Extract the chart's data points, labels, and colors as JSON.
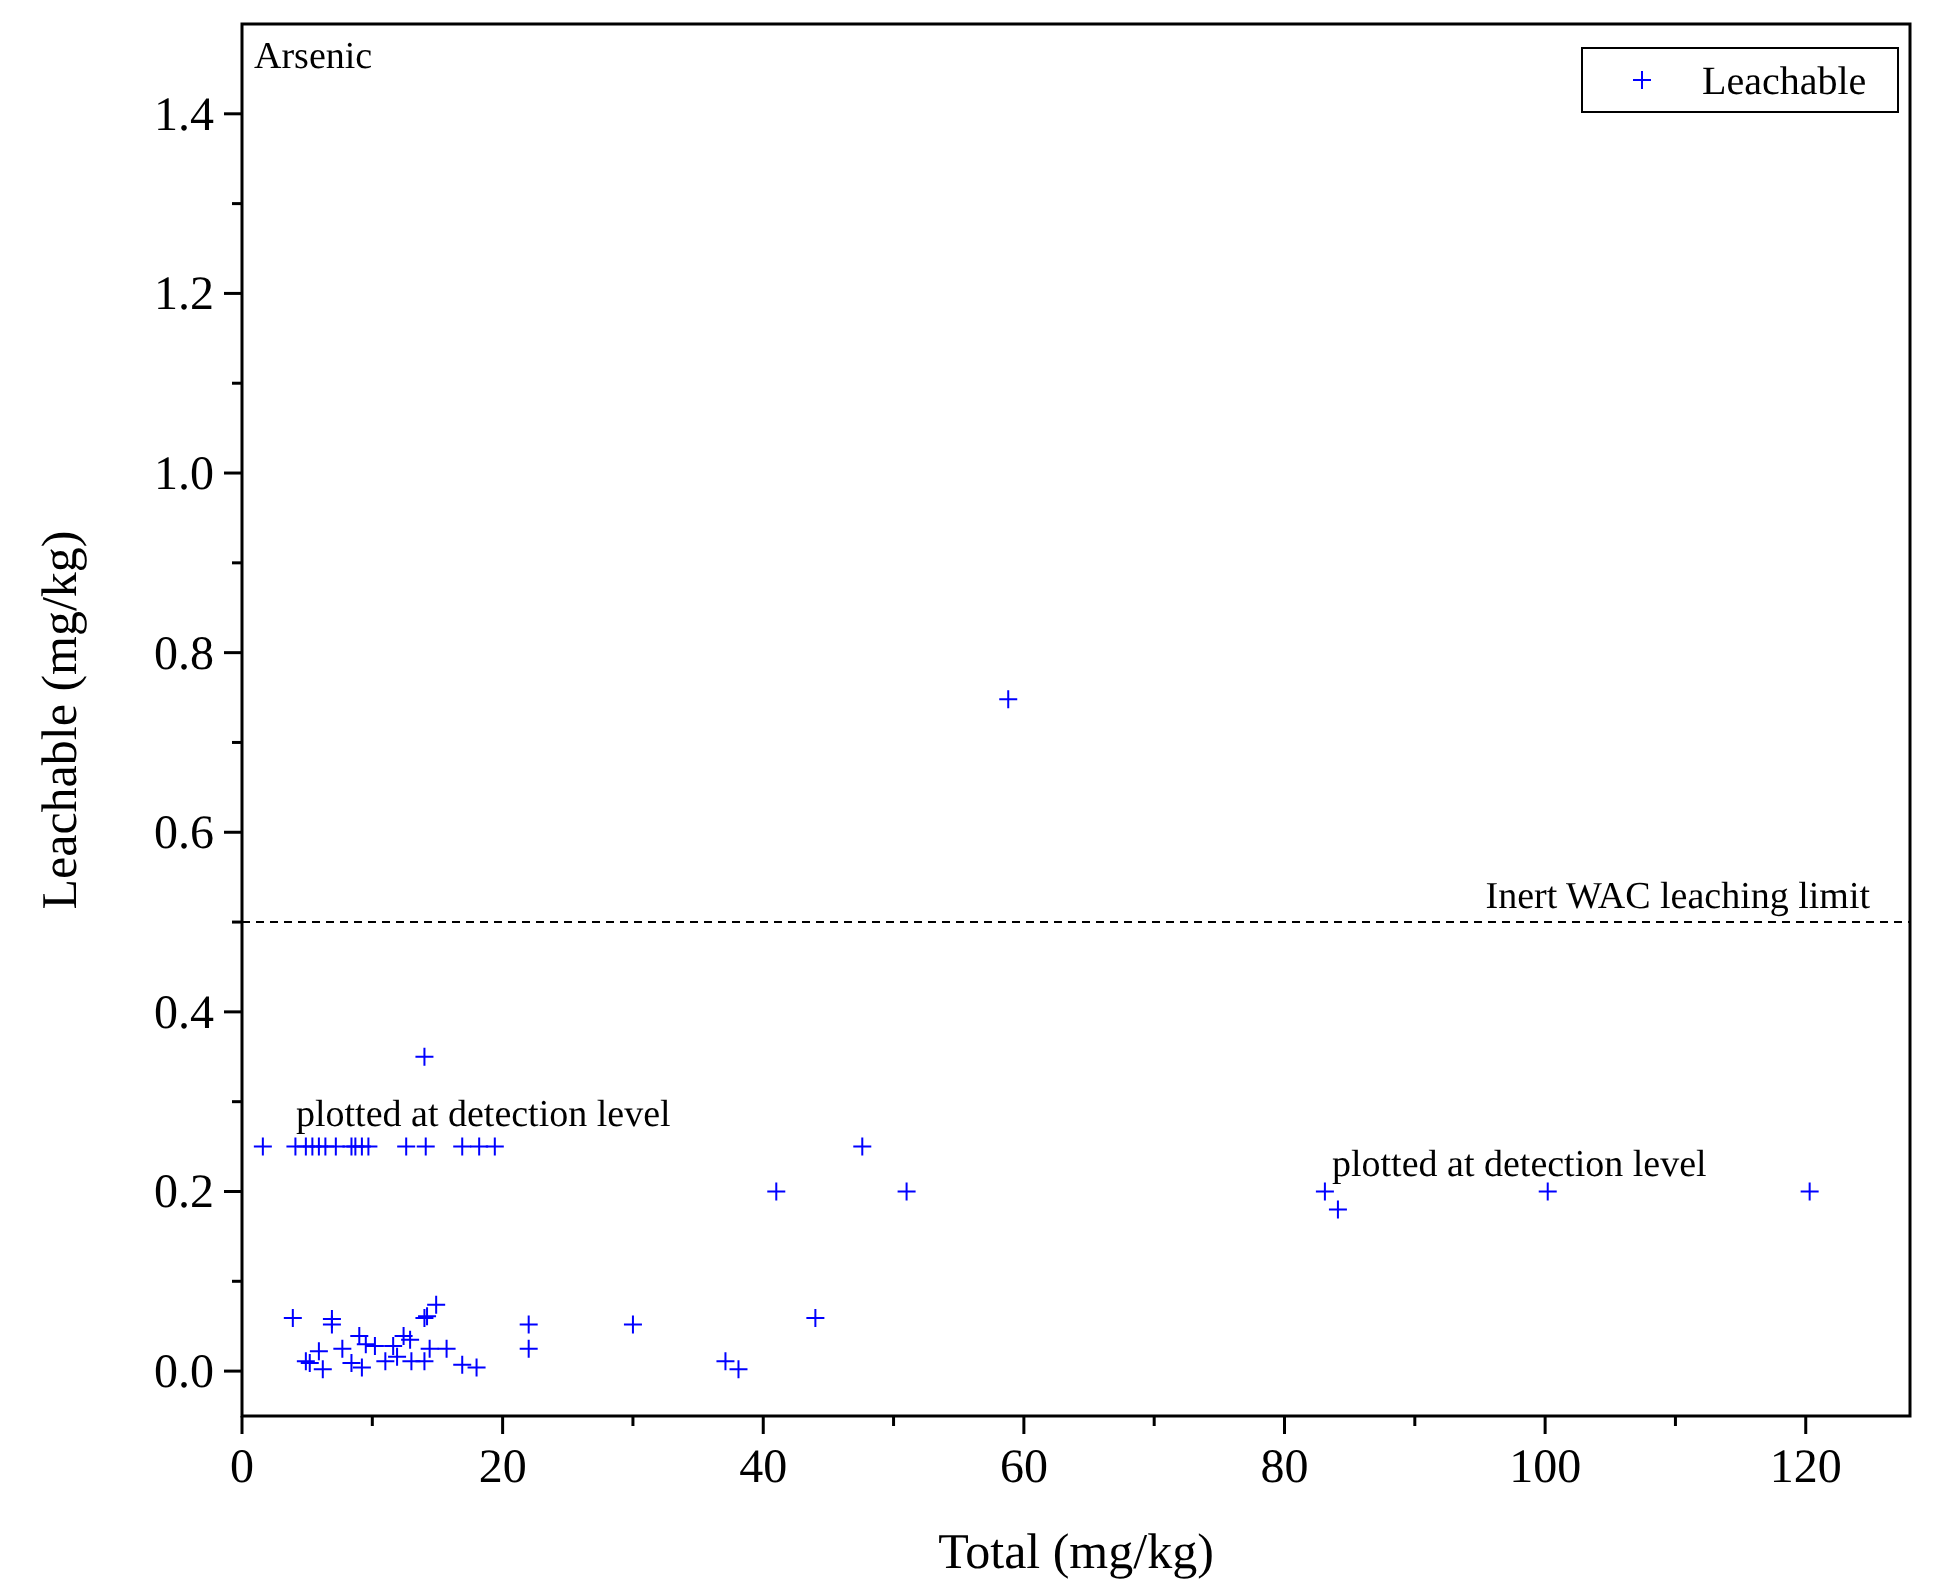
{
  "chart_data": {
    "type": "scatter",
    "xlabel": "Total (mg/kg)",
    "ylabel": "Leachable (mg/kg)",
    "xlim": [
      0,
      128
    ],
    "ylim": [
      -0.05,
      1.5
    ],
    "xticks": [
      0,
      {
        "value": 10,
        "label": null
      },
      20,
      {
        "value": 30,
        "label": null
      },
      40,
      {
        "value": 50,
        "label": null
      },
      60,
      {
        "value": 70,
        "label": null
      },
      80,
      {
        "value": 90,
        "label": null
      },
      100,
      {
        "value": 110,
        "label": null
      },
      120
    ],
    "yticks": [
      {
        "value": 0,
        "label": "0.0"
      },
      {
        "value": 0.1,
        "label": null
      },
      0.2,
      {
        "value": 0.3,
        "label": null
      },
      0.4,
      {
        "value": 0.5,
        "label": null
      },
      0.6,
      {
        "value": 0.7,
        "label": null
      },
      0.8,
      {
        "value": 0.9,
        "label": null
      },
      {
        "value": 1,
        "label": "1.0"
      },
      {
        "value": 1.1,
        "label": null
      },
      1.2,
      {
        "value": 1.3,
        "label": null
      },
      1.4
    ],
    "grid": false,
    "legend": "top right",
    "marker": "cross",
    "series": [
      {
        "name": "Leachable",
        "color": "#0000ff",
        "x": [
          1.6,
          4.1,
          4.9,
          5.4,
          5.9,
          6.4,
          7.2,
          8.4,
          8.7,
          9.2,
          9.7,
          12.6,
          14.1,
          16.9,
          18.2,
          19.4,
          14.0,
          41.0,
          3.9,
          6.9,
          6.9,
          4.9,
          5.2,
          5.9,
          6.2,
          7.7,
          8.4,
          9.0,
          9.2,
          9.5,
          10.2,
          11.0,
          11.6,
          11.9,
          12.4,
          12.9,
          13.0,
          14.0,
          14.0,
          14.2,
          14.9,
          14.4,
          15.7,
          16.9,
          18.0,
          22.0,
          22.0,
          30.0,
          37.1,
          38.1,
          44.0,
          58.8,
          47.6,
          51.0,
          83.1,
          84.1,
          100.2,
          120.3
        ],
        "values": [
          0.25,
          0.25,
          0.25,
          0.25,
          0.25,
          0.25,
          0.25,
          0.25,
          0.25,
          0.25,
          0.25,
          0.25,
          0.25,
          0.25,
          0.25,
          0.25,
          0.35,
          0.2,
          0.059,
          0.052,
          0.058,
          0.011,
          0.009,
          0.022,
          0.002,
          0.025,
          0.009,
          0.039,
          0.004,
          0.03,
          0.028,
          0.011,
          0.028,
          0.016,
          0.039,
          0.035,
          0.011,
          0.011,
          0.059,
          0.061,
          0.074,
          0.025,
          0.025,
          0.007,
          0.004,
          0.052,
          0.025,
          0.052,
          0.011,
          0.002,
          0.059,
          0.748,
          0.25,
          0.2,
          0.2,
          0.18,
          0.2,
          0.2
        ]
      }
    ],
    "ref_lines": [
      {
        "axis": "y",
        "value": 0.5,
        "label": "Inert WAC leaching limit",
        "color": "#000000",
        "line_style": "dashed"
      }
    ],
    "annotations": [
      "Arsenic",
      "plotted at detection level",
      "plotted at detection level"
    ]
  }
}
